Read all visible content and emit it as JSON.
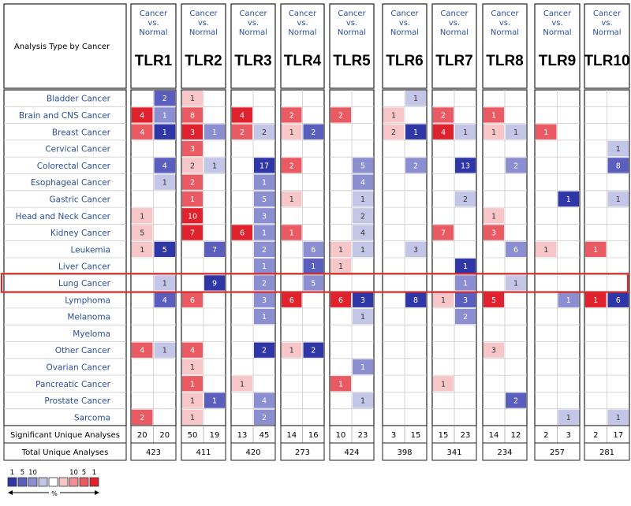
{
  "chart_data": {
    "type": "heatmap",
    "title": "Analysis Type by Cancer",
    "column_header": [
      "Cancer",
      "vs.",
      "Normal"
    ],
    "genes": [
      "TLR1",
      "TLR2",
      "TLR3",
      "TLR4",
      "TLR5",
      "TLR6",
      "TLR7",
      "TLR8",
      "TLR9",
      "TLR10"
    ],
    "cancers": [
      "Bladder Cancer",
      "Brain and CNS Cancer",
      "Breast Cancer",
      "Cervical Cancer",
      "Colorectal Cancer",
      "Esophageal Cancer",
      "Gastric Cancer",
      "Head and Neck Cancer",
      "Kidney Cancer",
      "Leukemia",
      "Liver Cancer",
      "Lung Cancer",
      "Lymphoma",
      "Melanoma",
      "Myeloma",
      "Other Cancer",
      "Ovarian Cancer",
      "Pancreatic Cancer",
      "Prostate Cancer",
      "Sarcoma"
    ],
    "highlighted_row": "Lung Cancer",
    "cells": [
      {
        "gene": 0,
        "row": 0,
        "dir": "down",
        "value": 2,
        "shade": 3
      },
      {
        "gene": 0,
        "row": 1,
        "dir": "up",
        "value": 4,
        "shade": 4
      },
      {
        "gene": 0,
        "row": 1,
        "dir": "down",
        "value": 1,
        "shade": 2
      },
      {
        "gene": 0,
        "row": 2,
        "dir": "up",
        "value": 4,
        "shade": 3
      },
      {
        "gene": 0,
        "row": 2,
        "dir": "down",
        "value": 1,
        "shade": 4
      },
      {
        "gene": 0,
        "row": 4,
        "dir": "down",
        "value": 4,
        "shade": 3
      },
      {
        "gene": 0,
        "row": 5,
        "dir": "down",
        "value": 1,
        "shade": 1
      },
      {
        "gene": 0,
        "row": 7,
        "dir": "up",
        "value": 1,
        "shade": 1
      },
      {
        "gene": 0,
        "row": 8,
        "dir": "up",
        "value": 5,
        "shade": 1
      },
      {
        "gene": 0,
        "row": 9,
        "dir": "up",
        "value": 1,
        "shade": 1
      },
      {
        "gene": 0,
        "row": 9,
        "dir": "down",
        "value": 5,
        "shade": 4
      },
      {
        "gene": 0,
        "row": 11,
        "dir": "down",
        "value": 1,
        "shade": 1
      },
      {
        "gene": 0,
        "row": 12,
        "dir": "down",
        "value": 4,
        "shade": 3
      },
      {
        "gene": 0,
        "row": 15,
        "dir": "up",
        "value": 4,
        "shade": 3
      },
      {
        "gene": 0,
        "row": 15,
        "dir": "down",
        "value": 1,
        "shade": 1
      },
      {
        "gene": 0,
        "row": 19,
        "dir": "up",
        "value": 2,
        "shade": 3
      },
      {
        "gene": 1,
        "row": 0,
        "dir": "up",
        "value": 1,
        "shade": 1
      },
      {
        "gene": 1,
        "row": 1,
        "dir": "up",
        "value": 8,
        "shade": 3
      },
      {
        "gene": 1,
        "row": 2,
        "dir": "up",
        "value": 3,
        "shade": 4
      },
      {
        "gene": 1,
        "row": 2,
        "dir": "down",
        "value": 1,
        "shade": 2
      },
      {
        "gene": 1,
        "row": 3,
        "dir": "up",
        "value": 3,
        "shade": 3
      },
      {
        "gene": 1,
        "row": 4,
        "dir": "up",
        "value": 2,
        "shade": 1
      },
      {
        "gene": 1,
        "row": 4,
        "dir": "down",
        "value": 1,
        "shade": 1
      },
      {
        "gene": 1,
        "row": 5,
        "dir": "up",
        "value": 2,
        "shade": 3
      },
      {
        "gene": 1,
        "row": 6,
        "dir": "up",
        "value": 1,
        "shade": 3
      },
      {
        "gene": 1,
        "row": 7,
        "dir": "up",
        "value": 10,
        "shade": 4
      },
      {
        "gene": 1,
        "row": 8,
        "dir": "up",
        "value": 7,
        "shade": 4
      },
      {
        "gene": 1,
        "row": 9,
        "dir": "down",
        "value": 7,
        "shade": 3
      },
      {
        "gene": 1,
        "row": 11,
        "dir": "down",
        "value": 9,
        "shade": 4
      },
      {
        "gene": 1,
        "row": 12,
        "dir": "up",
        "value": 6,
        "shade": 3
      },
      {
        "gene": 1,
        "row": 15,
        "dir": "up",
        "value": 4,
        "shade": 3
      },
      {
        "gene": 1,
        "row": 16,
        "dir": "up",
        "value": 1,
        "shade": 1
      },
      {
        "gene": 1,
        "row": 17,
        "dir": "up",
        "value": 1,
        "shade": 3
      },
      {
        "gene": 1,
        "row": 18,
        "dir": "up",
        "value": 1,
        "shade": 1
      },
      {
        "gene": 1,
        "row": 18,
        "dir": "down",
        "value": 1,
        "shade": 3
      },
      {
        "gene": 1,
        "row": 19,
        "dir": "up",
        "value": 1,
        "shade": 1
      },
      {
        "gene": 2,
        "row": 1,
        "dir": "up",
        "value": 4,
        "shade": 4
      },
      {
        "gene": 2,
        "row": 2,
        "dir": "up",
        "value": 2,
        "shade": 3
      },
      {
        "gene": 2,
        "row": 2,
        "dir": "down",
        "value": 2,
        "shade": 1
      },
      {
        "gene": 2,
        "row": 4,
        "dir": "down",
        "value": 17,
        "shade": 4
      },
      {
        "gene": 2,
        "row": 5,
        "dir": "down",
        "value": 1,
        "shade": 2
      },
      {
        "gene": 2,
        "row": 6,
        "dir": "down",
        "value": 5,
        "shade": 2
      },
      {
        "gene": 2,
        "row": 7,
        "dir": "down",
        "value": 3,
        "shade": 2
      },
      {
        "gene": 2,
        "row": 8,
        "dir": "up",
        "value": 6,
        "shade": 4
      },
      {
        "gene": 2,
        "row": 8,
        "dir": "down",
        "value": 1,
        "shade": 2
      },
      {
        "gene": 2,
        "row": 9,
        "dir": "down",
        "value": 2,
        "shade": 2
      },
      {
        "gene": 2,
        "row": 10,
        "dir": "down",
        "value": 1,
        "shade": 2
      },
      {
        "gene": 2,
        "row": 11,
        "dir": "down",
        "value": 2,
        "shade": 2
      },
      {
        "gene": 2,
        "row": 12,
        "dir": "down",
        "value": 3,
        "shade": 2
      },
      {
        "gene": 2,
        "row": 13,
        "dir": "down",
        "value": 1,
        "shade": 2
      },
      {
        "gene": 2,
        "row": 15,
        "dir": "down",
        "value": 2,
        "shade": 4
      },
      {
        "gene": 2,
        "row": 17,
        "dir": "up",
        "value": 1,
        "shade": 1
      },
      {
        "gene": 2,
        "row": 18,
        "dir": "down",
        "value": 4,
        "shade": 2
      },
      {
        "gene": 2,
        "row": 19,
        "dir": "down",
        "value": 2,
        "shade": 2
      },
      {
        "gene": 3,
        "row": 1,
        "dir": "up",
        "value": 2,
        "shade": 3
      },
      {
        "gene": 3,
        "row": 2,
        "dir": "up",
        "value": 1,
        "shade": 1
      },
      {
        "gene": 3,
        "row": 2,
        "dir": "down",
        "value": 2,
        "shade": 3
      },
      {
        "gene": 3,
        "row": 4,
        "dir": "up",
        "value": 2,
        "shade": 3
      },
      {
        "gene": 3,
        "row": 6,
        "dir": "up",
        "value": 1,
        "shade": 1
      },
      {
        "gene": 3,
        "row": 8,
        "dir": "up",
        "value": 1,
        "shade": 3
      },
      {
        "gene": 3,
        "row": 9,
        "dir": "down",
        "value": 6,
        "shade": 2
      },
      {
        "gene": 3,
        "row": 10,
        "dir": "down",
        "value": 1,
        "shade": 3
      },
      {
        "gene": 3,
        "row": 11,
        "dir": "down",
        "value": 5,
        "shade": 2
      },
      {
        "gene": 3,
        "row": 12,
        "dir": "up",
        "value": 6,
        "shade": 4
      },
      {
        "gene": 3,
        "row": 15,
        "dir": "up",
        "value": 1,
        "shade": 1
      },
      {
        "gene": 3,
        "row": 15,
        "dir": "down",
        "value": 2,
        "shade": 4
      },
      {
        "gene": 4,
        "row": 1,
        "dir": "up",
        "value": 2,
        "shade": 3
      },
      {
        "gene": 4,
        "row": 4,
        "dir": "down",
        "value": 5,
        "shade": 2
      },
      {
        "gene": 4,
        "row": 5,
        "dir": "down",
        "value": 4,
        "shade": 2
      },
      {
        "gene": 4,
        "row": 6,
        "dir": "down",
        "value": 1,
        "shade": 1
      },
      {
        "gene": 4,
        "row": 7,
        "dir": "down",
        "value": 2,
        "shade": 1
      },
      {
        "gene": 4,
        "row": 8,
        "dir": "down",
        "value": 4,
        "shade": 1
      },
      {
        "gene": 4,
        "row": 9,
        "dir": "up",
        "value": 1,
        "shade": 1
      },
      {
        "gene": 4,
        "row": 9,
        "dir": "down",
        "value": 1,
        "shade": 1
      },
      {
        "gene": 4,
        "row": 10,
        "dir": "up",
        "value": 1,
        "shade": 1
      },
      {
        "gene": 4,
        "row": 12,
        "dir": "up",
        "value": 6,
        "shade": 4
      },
      {
        "gene": 4,
        "row": 12,
        "dir": "down",
        "value": 3,
        "shade": 4
      },
      {
        "gene": 4,
        "row": 13,
        "dir": "down",
        "value": 1,
        "shade": 1
      },
      {
        "gene": 4,
        "row": 16,
        "dir": "down",
        "value": 1,
        "shade": 2
      },
      {
        "gene": 4,
        "row": 17,
        "dir": "up",
        "value": 1,
        "shade": 3
      },
      {
        "gene": 4,
        "row": 18,
        "dir": "down",
        "value": 1,
        "shade": 1
      },
      {
        "gene": 5,
        "row": 0,
        "dir": "down",
        "value": 1,
        "shade": 1
      },
      {
        "gene": 5,
        "row": 1,
        "dir": "up",
        "value": 1,
        "shade": 1
      },
      {
        "gene": 5,
        "row": 2,
        "dir": "up",
        "value": 2,
        "shade": 1
      },
      {
        "gene": 5,
        "row": 2,
        "dir": "down",
        "value": 1,
        "shade": 4
      },
      {
        "gene": 5,
        "row": 4,
        "dir": "down",
        "value": 2,
        "shade": 2
      },
      {
        "gene": 5,
        "row": 9,
        "dir": "down",
        "value": 3,
        "shade": 1
      },
      {
        "gene": 5,
        "row": 12,
        "dir": "down",
        "value": 8,
        "shade": 4
      },
      {
        "gene": 6,
        "row": 1,
        "dir": "up",
        "value": 2,
        "shade": 3
      },
      {
        "gene": 6,
        "row": 2,
        "dir": "up",
        "value": 4,
        "shade": 4
      },
      {
        "gene": 6,
        "row": 2,
        "dir": "down",
        "value": 1,
        "shade": 1
      },
      {
        "gene": 6,
        "row": 4,
        "dir": "down",
        "value": 13,
        "shade": 4
      },
      {
        "gene": 6,
        "row": 6,
        "dir": "down",
        "value": 2,
        "shade": 1
      },
      {
        "gene": 6,
        "row": 8,
        "dir": "up",
        "value": 7,
        "shade": 3
      },
      {
        "gene": 6,
        "row": 10,
        "dir": "down",
        "value": 1,
        "shade": 4
      },
      {
        "gene": 6,
        "row": 11,
        "dir": "down",
        "value": 1,
        "shade": 2
      },
      {
        "gene": 6,
        "row": 12,
        "dir": "up",
        "value": 1,
        "shade": 1
      },
      {
        "gene": 6,
        "row": 12,
        "dir": "down",
        "value": 3,
        "shade": 3
      },
      {
        "gene": 6,
        "row": 13,
        "dir": "down",
        "value": 2,
        "shade": 2
      },
      {
        "gene": 6,
        "row": 17,
        "dir": "up",
        "value": 1,
        "shade": 1
      },
      {
        "gene": 7,
        "row": 1,
        "dir": "up",
        "value": 1,
        "shade": 3
      },
      {
        "gene": 7,
        "row": 2,
        "dir": "up",
        "value": 1,
        "shade": 1
      },
      {
        "gene": 7,
        "row": 2,
        "dir": "down",
        "value": 1,
        "shade": 1
      },
      {
        "gene": 7,
        "row": 4,
        "dir": "down",
        "value": 2,
        "shade": 2
      },
      {
        "gene": 7,
        "row": 7,
        "dir": "up",
        "value": 1,
        "shade": 1
      },
      {
        "gene": 7,
        "row": 8,
        "dir": "up",
        "value": 3,
        "shade": 3
      },
      {
        "gene": 7,
        "row": 9,
        "dir": "down",
        "value": 6,
        "shade": 2
      },
      {
        "gene": 7,
        "row": 11,
        "dir": "down",
        "value": 1,
        "shade": 1
      },
      {
        "gene": 7,
        "row": 12,
        "dir": "up",
        "value": 5,
        "shade": 4
      },
      {
        "gene": 7,
        "row": 15,
        "dir": "up",
        "value": 3,
        "shade": 1
      },
      {
        "gene": 7,
        "row": 18,
        "dir": "down",
        "value": 2,
        "shade": 3
      },
      {
        "gene": 8,
        "row": 2,
        "dir": "up",
        "value": 1,
        "shade": 3
      },
      {
        "gene": 8,
        "row": 6,
        "dir": "down",
        "value": 1,
        "shade": 4
      },
      {
        "gene": 8,
        "row": 9,
        "dir": "up",
        "value": 1,
        "shade": 1
      },
      {
        "gene": 8,
        "row": 12,
        "dir": "down",
        "value": 1,
        "shade": 2
      },
      {
        "gene": 8,
        "row": 19,
        "dir": "down",
        "value": 1,
        "shade": 1
      },
      {
        "gene": 9,
        "row": 3,
        "dir": "down",
        "value": 1,
        "shade": 1
      },
      {
        "gene": 9,
        "row": 4,
        "dir": "down",
        "value": 8,
        "shade": 3
      },
      {
        "gene": 9,
        "row": 6,
        "dir": "down",
        "value": 1,
        "shade": 1
      },
      {
        "gene": 9,
        "row": 9,
        "dir": "up",
        "value": 1,
        "shade": 3
      },
      {
        "gene": 9,
        "row": 12,
        "dir": "up",
        "value": 1,
        "shade": 4
      },
      {
        "gene": 9,
        "row": 12,
        "dir": "down",
        "value": 6,
        "shade": 4
      },
      {
        "gene": 9,
        "row": 19,
        "dir": "down",
        "value": 1,
        "shade": 1
      }
    ],
    "footer_labels": [
      "Significant Unique Analyses",
      "Total Unique Analyses"
    ],
    "significant_unique": [
      [
        20,
        20
      ],
      [
        50,
        19
      ],
      [
        13,
        45
      ],
      [
        14,
        16
      ],
      [
        10,
        23
      ],
      [
        3,
        15
      ],
      [
        15,
        23
      ],
      [
        14,
        12
      ],
      [
        2,
        3
      ],
      [
        2,
        17
      ]
    ],
    "total_unique": [
      423,
      411,
      420,
      273,
      424,
      398,
      341,
      234,
      257,
      281
    ],
    "legend": {
      "top_labels": [
        "1",
        "5",
        "10",
        "10",
        "5",
        "1"
      ],
      "unit": "%"
    },
    "colors": {
      "down": [
        "#ffffff",
        "#c4c6e8",
        "#8b8fd1",
        "#5a5fbe",
        "#2f37a6"
      ],
      "up": [
        "#ffffff",
        "#f7c6c9",
        "#f28e94",
        "#ea5a63",
        "#e0222e"
      ],
      "label_blue": "#2b4f9c",
      "highlight": "#d62b2b"
    }
  }
}
